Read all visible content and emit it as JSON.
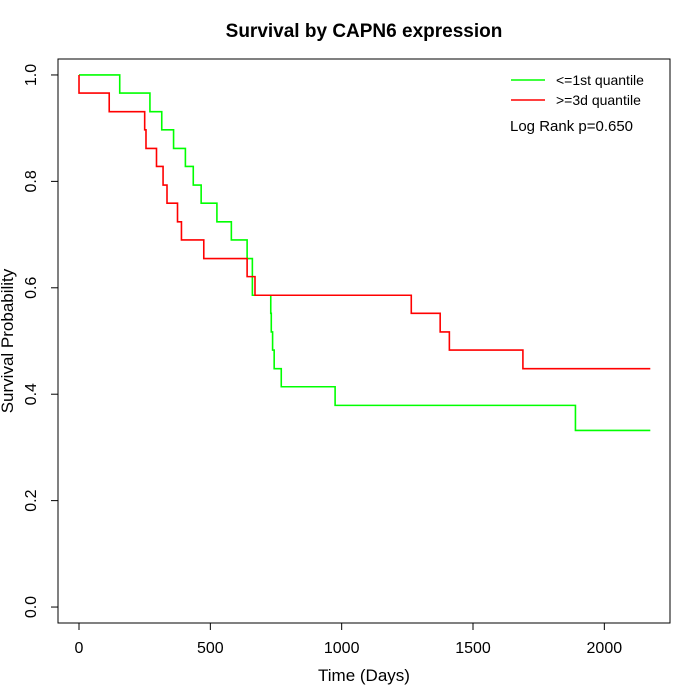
{
  "chart_data": {
    "type": "line",
    "title": "Survival by CAPN6 expression",
    "xlabel": "Time (Days)",
    "ylabel": "Survival Probability",
    "xlim": [
      -80,
      2250
    ],
    "ylim": [
      -0.03,
      1.03
    ],
    "xticks": [
      0,
      500,
      1000,
      1500,
      2000
    ],
    "yticks": [
      0.0,
      0.2,
      0.4,
      0.6,
      0.8,
      1.0
    ],
    "xtick_labels": [
      "0",
      "500",
      "1000",
      "1500",
      "2000"
    ],
    "ytick_labels": [
      "0.0",
      "0.2",
      "0.4",
      "0.6",
      "0.8",
      "1.0"
    ],
    "grid": false,
    "legend_position": "top-right",
    "annotation": "Log Rank p=0.650",
    "series": [
      {
        "name": "<=1st quantile",
        "color": "#00ff00",
        "steps": [
          [
            0,
            1.0
          ],
          [
            155,
            0.966
          ],
          [
            270,
            0.931
          ],
          [
            315,
            0.897
          ],
          [
            360,
            0.862
          ],
          [
            405,
            0.828
          ],
          [
            435,
            0.793
          ],
          [
            465,
            0.759
          ],
          [
            525,
            0.724
          ],
          [
            580,
            0.69
          ],
          [
            640,
            0.655
          ],
          [
            660,
            0.586
          ],
          [
            730,
            0.552
          ],
          [
            732,
            0.517
          ],
          [
            737,
            0.483
          ],
          [
            743,
            0.448
          ],
          [
            770,
            0.414
          ],
          [
            975,
            0.379
          ],
          [
            1890,
            0.332
          ],
          [
            2175,
            0.332
          ]
        ]
      },
      {
        "name": ">=3d quantile",
        "color": "#ff0000",
        "steps": [
          [
            0,
            0.966
          ],
          [
            115,
            0.931
          ],
          [
            250,
            0.897
          ],
          [
            255,
            0.862
          ],
          [
            295,
            0.828
          ],
          [
            320,
            0.793
          ],
          [
            335,
            0.759
          ],
          [
            375,
            0.724
          ],
          [
            390,
            0.69
          ],
          [
            475,
            0.655
          ],
          [
            640,
            0.621
          ],
          [
            670,
            0.586
          ],
          [
            1265,
            0.552
          ],
          [
            1375,
            0.517
          ],
          [
            1410,
            0.483
          ],
          [
            1690,
            0.448
          ],
          [
            2175,
            0.448
          ]
        ]
      }
    ]
  }
}
